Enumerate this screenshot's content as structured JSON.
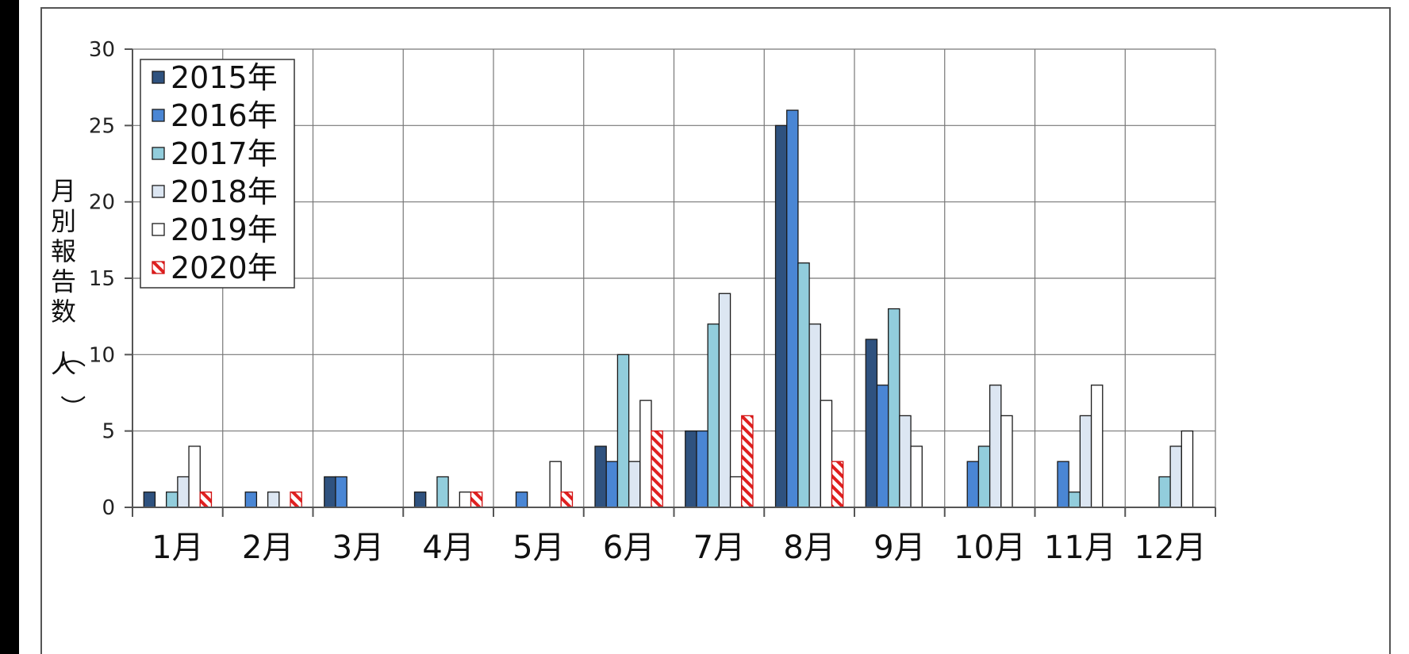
{
  "chart_data": {
    "type": "bar",
    "ylabel": "月別報告数（人）",
    "ylim": [
      0,
      30
    ],
    "yticks": [
      "0",
      "5",
      "10",
      "15",
      "20",
      "25",
      "30"
    ],
    "grid": true,
    "legend_position": "top-left",
    "categories": [
      "1月",
      "2月",
      "3月",
      "4月",
      "5月",
      "6月",
      "7月",
      "8月",
      "9月",
      "10月",
      "11月",
      "12月"
    ],
    "series": [
      {
        "name": "2015年",
        "color": "#2f527f",
        "pattern": "solid",
        "values": [
          1,
          0,
          2,
          1,
          0,
          4,
          5,
          25,
          11,
          0,
          0,
          0
        ]
      },
      {
        "name": "2016年",
        "color": "#4a86d4",
        "pattern": "solid",
        "values": [
          0,
          1,
          2,
          0,
          1,
          3,
          5,
          26,
          8,
          3,
          3,
          0
        ]
      },
      {
        "name": "2017年",
        "color": "#92cddc",
        "pattern": "solid",
        "values": [
          1,
          0,
          0,
          2,
          0,
          10,
          12,
          16,
          13,
          4,
          1,
          2
        ]
      },
      {
        "name": "2018年",
        "color": "#dce6f2",
        "pattern": "solid",
        "values": [
          2,
          1,
          0,
          0,
          0,
          3,
          14,
          12,
          6,
          8,
          6,
          4
        ]
      },
      {
        "name": "2019年",
        "color": "#ffffff",
        "pattern": "solid",
        "values": [
          4,
          0,
          0,
          1,
          3,
          7,
          2,
          7,
          4,
          6,
          8,
          5
        ]
      },
      {
        "name": "2020年",
        "color": "#e02020",
        "pattern": "hatch",
        "values": [
          1,
          1,
          0,
          1,
          1,
          5,
          6,
          3,
          0,
          0,
          0,
          0
        ]
      }
    ]
  }
}
